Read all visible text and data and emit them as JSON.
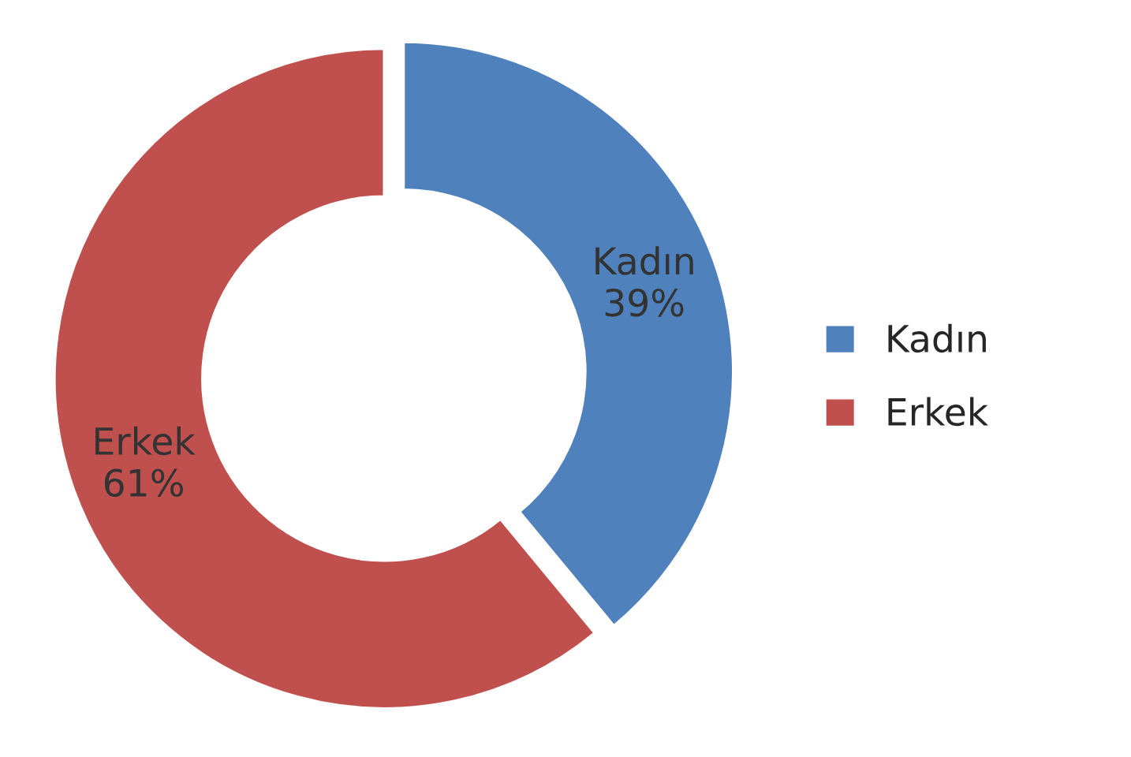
{
  "chart_data": {
    "type": "donut",
    "categories": [
      "Kadın",
      "Erkek"
    ],
    "values": [
      39,
      61
    ],
    "colors": [
      "#4f81bd",
      "#c0504d"
    ],
    "value_labels": [
      "39%",
      "61%"
    ],
    "legend": "right"
  }
}
